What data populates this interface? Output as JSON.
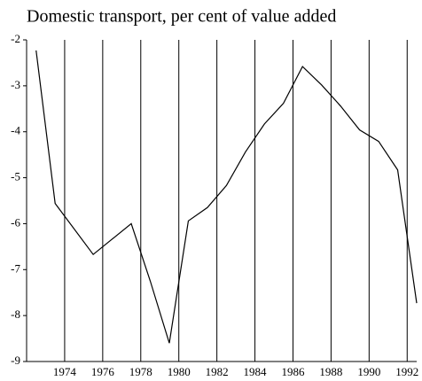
{
  "chart_data": {
    "type": "line",
    "title": "Domestic transport, per cent of value added",
    "x": [
      1972.5,
      1973.5,
      1975.5,
      1977.5,
      1978.5,
      1979.5,
      1980.5,
      1981.5,
      1982.5,
      1983.5,
      1984.5,
      1985.5,
      1986.5,
      1987.5,
      1988.5,
      1989.5,
      1990.5,
      1991.5,
      1992.5
    ],
    "series": [
      {
        "name": "Domestic transport",
        "color": "#000000",
        "values": [
          -2.23,
          -5.56,
          -6.67,
          -6.0,
          -7.25,
          -8.6,
          -5.94,
          -5.65,
          -5.17,
          -4.44,
          -3.83,
          -3.38,
          -2.58,
          -2.98,
          -3.44,
          -3.96,
          -4.21,
          -4.83,
          -7.73
        ]
      }
    ],
    "xlim": [
      1972,
      1992.5
    ],
    "xticks": [
      1974,
      1976,
      1978,
      1980,
      1982,
      1984,
      1986,
      1988,
      1990,
      1992
    ],
    "ylim": [
      -9,
      -2
    ],
    "yticks": [
      -9,
      -8,
      -7,
      -6,
      -5,
      -4,
      -3,
      -2
    ],
    "grid": "x"
  }
}
